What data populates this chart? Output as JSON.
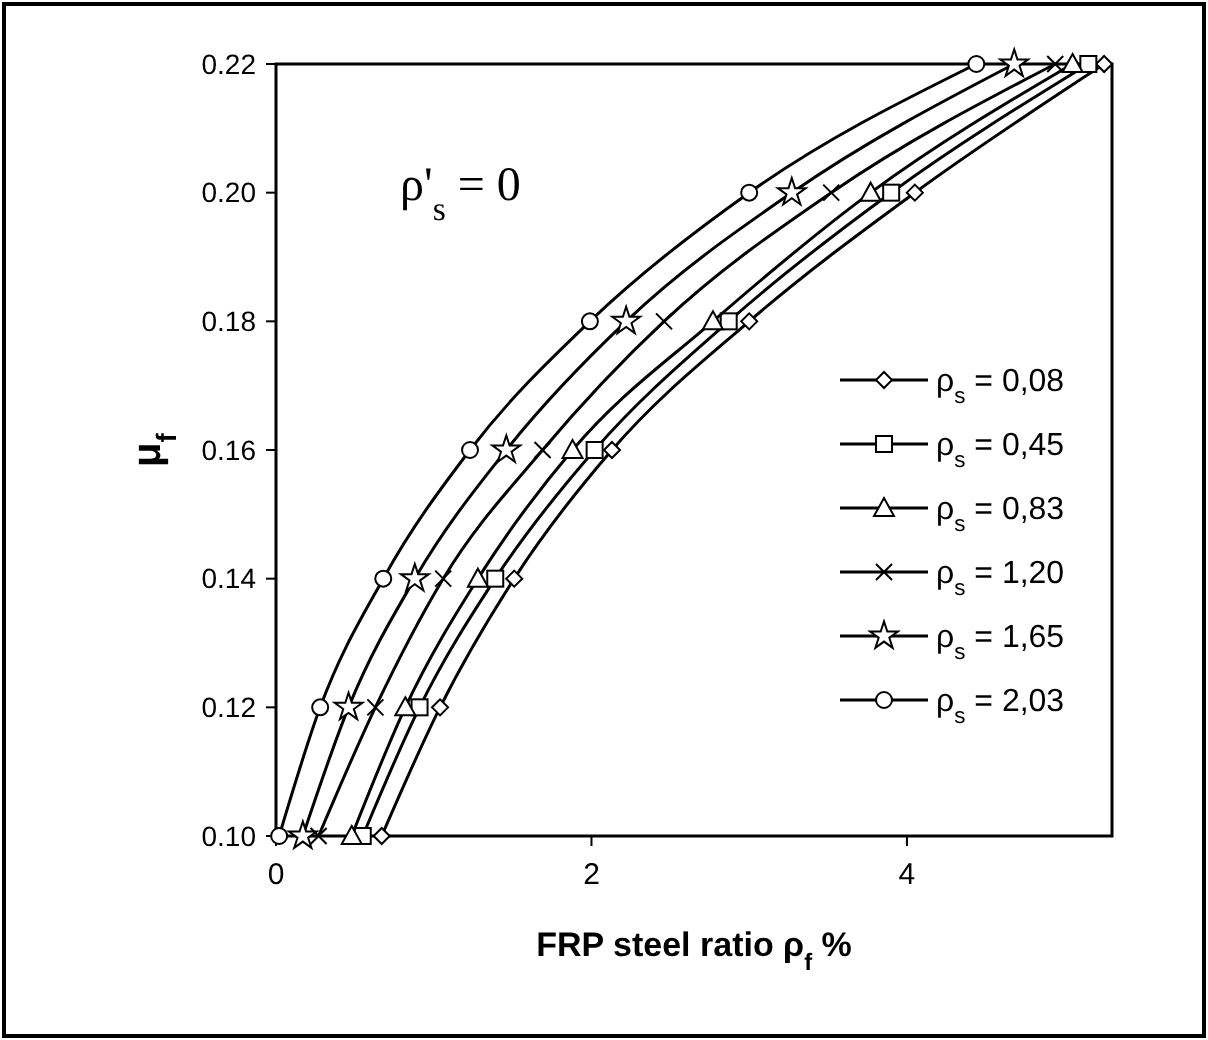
{
  "chart_data": {
    "type": "line",
    "xlabel": "FRP steel ratio ρ$_{f}$ %",
    "ylabel": "μ$_{f}$",
    "annotations": [
      "ρ'$_{s}$ = 0"
    ],
    "xlim": [
      0,
      5.3
    ],
    "ylim": [
      0.1,
      0.22
    ],
    "xticks": [
      0,
      2,
      4
    ],
    "yticks": [
      {
        "value": 0.1,
        "label": "0.10"
      },
      {
        "value": 0.12,
        "label": "0.12"
      },
      {
        "value": 0.14,
        "label": "0.14"
      },
      {
        "value": 0.16,
        "label": "0.16"
      },
      {
        "value": 0.18,
        "label": "0.18"
      },
      {
        "value": 0.2,
        "label": "0.20"
      },
      {
        "value": 0.22,
        "label": "0.22"
      }
    ],
    "grid": false,
    "legend": "right",
    "line_style": "solid",
    "series": [
      {
        "name": "ρ$_{s}$ = 0,08",
        "color": "#000000",
        "marker": "diamond",
        "x": [
          0.67,
          1.04,
          1.51,
          2.13,
          3.0,
          4.05,
          5.25
        ],
        "values": [
          0.1,
          0.12,
          0.14,
          0.16,
          0.18,
          0.2,
          0.22
        ]
      },
      {
        "name": "ρ$_{s}$ = 0,45",
        "color": "#000000",
        "marker": "square",
        "x": [
          0.55,
          0.91,
          1.39,
          2.02,
          2.87,
          3.9,
          5.15
        ],
        "values": [
          0.1,
          0.12,
          0.14,
          0.16,
          0.18,
          0.2,
          0.22
        ]
      },
      {
        "name": "ρ$_{s}$ = 0,83",
        "color": "#000000",
        "marker": "triangle",
        "x": [
          0.48,
          0.82,
          1.28,
          1.88,
          2.77,
          3.77,
          5.05
        ],
        "values": [
          0.1,
          0.12,
          0.14,
          0.16,
          0.18,
          0.2,
          0.22
        ]
      },
      {
        "name": "ρ$_{s}$ = 1,20",
        "color": "#000000",
        "marker": "cross",
        "x": [
          0.27,
          0.63,
          1.06,
          1.69,
          2.46,
          3.52,
          4.94
        ],
        "values": [
          0.1,
          0.12,
          0.14,
          0.16,
          0.18,
          0.2,
          0.22
        ]
      },
      {
        "name": "ρ$_{s}$ = 1,65",
        "color": "#000000",
        "marker": "star",
        "x": [
          0.17,
          0.46,
          0.88,
          1.46,
          2.22,
          3.27,
          4.68
        ],
        "values": [
          0.1,
          0.12,
          0.14,
          0.16,
          0.18,
          0.2,
          0.22
        ]
      },
      {
        "name": "ρ$_{s}$ = 2,03",
        "color": "#000000",
        "marker": "circle",
        "x": [
          0.02,
          0.28,
          0.68,
          1.23,
          1.99,
          3.0,
          4.44
        ],
        "values": [
          0.1,
          0.12,
          0.14,
          0.16,
          0.18,
          0.2,
          0.22
        ]
      }
    ]
  }
}
